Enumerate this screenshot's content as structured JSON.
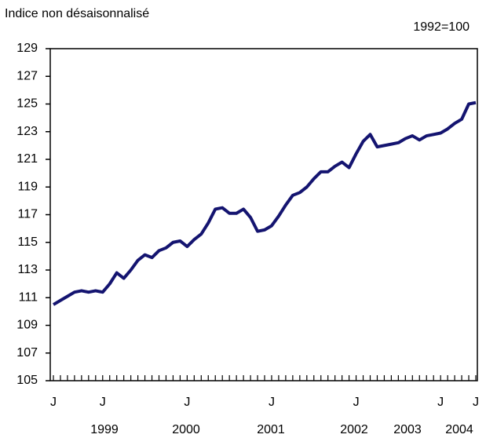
{
  "chart_data": {
    "type": "line",
    "title": "Indice non désaisonnalisé",
    "subtitle": "1992=100",
    "categories": [
      "J",
      null,
      null,
      null,
      null,
      null,
      null,
      "J",
      null,
      null,
      null,
      null,
      null,
      null,
      null,
      null,
      null,
      null,
      null,
      "J",
      null,
      null,
      null,
      null,
      null,
      null,
      null,
      null,
      null,
      null,
      null,
      "J",
      null,
      null,
      null,
      null,
      null,
      null,
      null,
      null,
      null,
      null,
      null,
      "J",
      null,
      null,
      null,
      null,
      null,
      null,
      null,
      null,
      null,
      null,
      null,
      "J",
      null,
      null,
      null,
      null,
      "J"
    ],
    "year_labels": [
      "1999",
      "2000",
      "2001",
      "2002",
      "2003",
      "2004"
    ],
    "series": [
      {
        "color": "#141470",
        "values": [
          110.5,
          110.8,
          111.1,
          111.4,
          111.5,
          111.4,
          111.5,
          111.4,
          112.0,
          112.8,
          112.4,
          113.0,
          113.7,
          114.1,
          113.9,
          114.4,
          114.6,
          115.0,
          115.1,
          114.7,
          115.2,
          115.6,
          116.4,
          117.4,
          117.5,
          117.1,
          117.1,
          117.4,
          116.8,
          115.8,
          115.9,
          116.2,
          116.9,
          117.7,
          118.4,
          118.6,
          119.0,
          119.6,
          120.1,
          120.1,
          120.5,
          120.8,
          120.4,
          121.4,
          122.3,
          122.8,
          121.9,
          122.0,
          122.1,
          122.2,
          122.5,
          122.7,
          122.4,
          122.7,
          122.8,
          122.9,
          123.2,
          123.6,
          123.9,
          125.0,
          125.1
        ]
      }
    ],
    "ylim": [
      105,
      129
    ],
    "yticks": [
      105,
      107,
      109,
      111,
      113,
      115,
      117,
      119,
      121,
      123,
      125,
      127,
      129
    ]
  }
}
